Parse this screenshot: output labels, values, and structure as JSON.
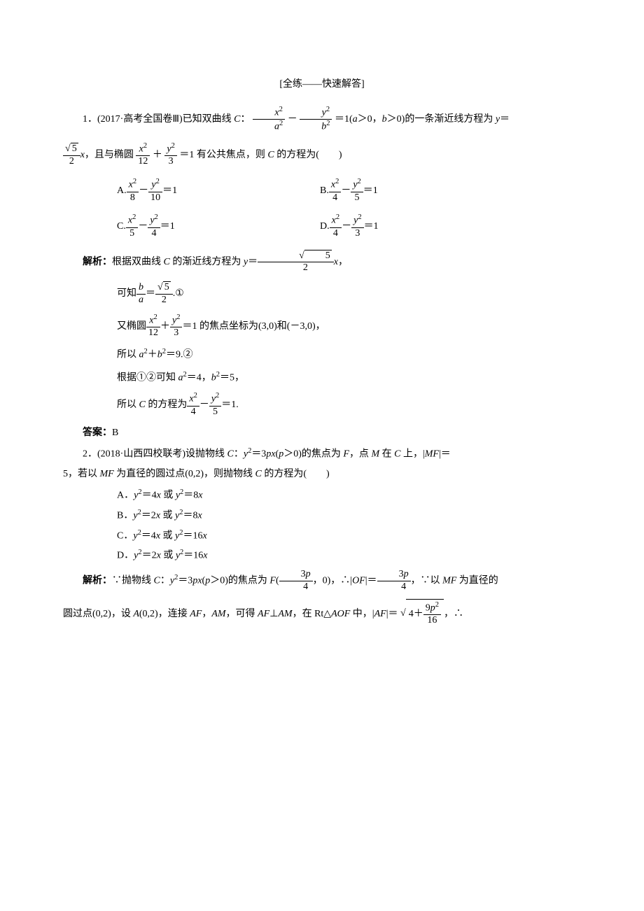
{
  "title": "[全练——快速解答]",
  "q1": {
    "stem_a": "1．(2017·高考全国卷Ⅲ)已知双曲线 ",
    "stem_b": "：",
    "stem_c": "＝1(",
    "stem_d": "＞0，",
    "stem_e": "＞0)的一条渐近线方程为 ",
    "stem_f": "＝",
    "line2_a": "，且与椭圆",
    "line2_b": "＋",
    "line2_c": "＝1 有公共焦点，则 ",
    "line2_d": " 的方程为(　　)",
    "opt_A": "A.",
    "opt_B": "B.",
    "opt_C": "C.",
    "opt_D": "D.",
    "eq1": "＝1",
    "sol_label": "解析：",
    "sol1_a": "根据双曲线 ",
    "sol1_b": " 的渐近线方程为 ",
    "sol1_c": "＝",
    "sol1_d": "，",
    "sol2_a": "可知",
    "sol2_b": "＝",
    "sol2_c": ".①",
    "sol3_a": "又椭圆",
    "sol3_b": "＋",
    "sol3_c": "＝1 的焦点坐标为(3,0)和(－3,0)，",
    "sol4": "所以 ",
    "sol4b": "＋",
    "sol4c": "＝9.②",
    "sol5_a": "根据①②可知 ",
    "sol5_b": "＝4，",
    "sol5_c": "＝5，",
    "sol6_a": "所以 ",
    "sol6_b": " 的方程为",
    "sol6_c": "－",
    "sol6_d": "＝1.",
    "ans_label": "答案：",
    "ans": "B"
  },
  "q2": {
    "stem_a": "2．(2018·山西四校联考)设抛物线 ",
    "stem_b": "：",
    "stem_c": "＝3",
    "stem_d": "(",
    "stem_e": "＞0)的焦点为 ",
    "stem_f": "，点 ",
    "stem_g": " 在 ",
    "stem_h": " 上，|",
    "stem_i": "|＝",
    "line2_a": "5，若以 ",
    "line2_b": " 为直径的圆过点(0,2)，则抛物线 ",
    "line2_c": " 的方程为(　　)",
    "opt_A_a": "A．",
    "opt_A_b": "＝4",
    "opt_A_c": " 或 ",
    "opt_A_d": "＝8",
    "opt_B_a": "B．",
    "opt_B_b": "＝2",
    "opt_B_c": " 或 ",
    "opt_B_d": "＝8",
    "opt_C_a": "C．",
    "opt_C_b": "＝4",
    "opt_C_c": " 或 ",
    "opt_C_d": "＝16",
    "opt_D_a": "D．",
    "opt_D_b": "＝2",
    "opt_D_c": " 或 ",
    "opt_D_d": "＝16",
    "sol_label": "解析：",
    "sol1_a": "∵抛物线 ",
    "sol1_b": "：",
    "sol1_c": "＝3",
    "sol1_d": "(",
    "sol1_e": "＞0)的焦点为 ",
    "sol1_f": "(",
    "sol1_g": "，0)，∴|",
    "sol1_h": "|＝",
    "sol1_i": "，∵以 ",
    "sol1_j": " 为直径的",
    "sol2_a": "圆过点(0,2)，设 ",
    "sol2_b": "(0,2)，连接 ",
    "sol2_c": "，",
    "sol2_d": "，可得 ",
    "sol2_e": "⊥",
    "sol2_f": "，在 Rt△",
    "sol2_g": " 中，|",
    "sol2_h": "|＝",
    "sol2_i": "，∴"
  }
}
